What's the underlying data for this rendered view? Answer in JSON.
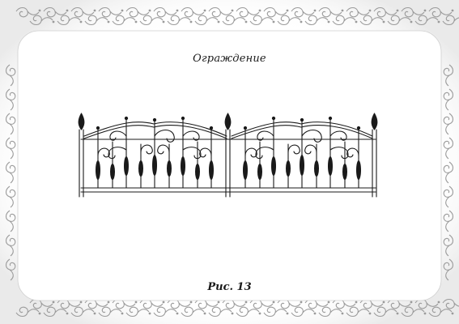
{
  "document": {
    "title": "Ограждение",
    "caption": "Рис. 13"
  },
  "colors": {
    "ink": "#1a1a1a",
    "ornament": "#a8a8a8",
    "paper": "#ffffff"
  },
  "figure": {
    "subject": "forged fence",
    "panels": 2,
    "posts": 3,
    "post_finial": "spear-top",
    "bars_per_panel": 9
  }
}
